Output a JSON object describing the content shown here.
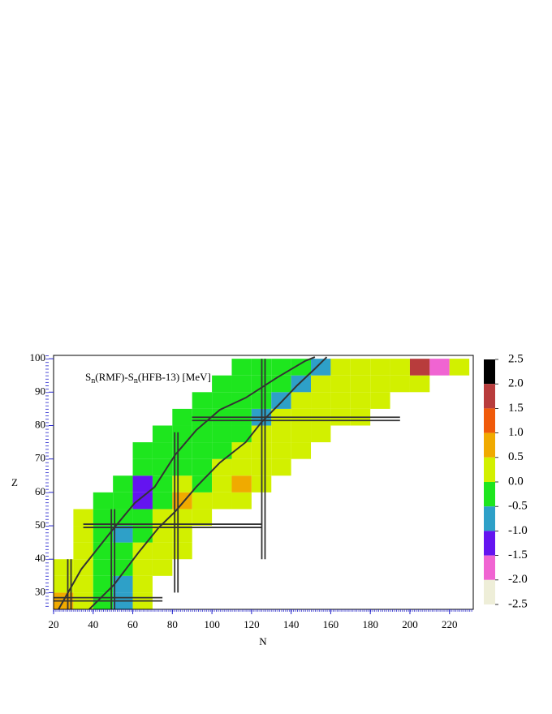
{
  "chart_data": {
    "type": "heatmap",
    "annotation": [
      "S",
      "n",
      "(RMF)-S",
      "n",
      "(HFB-13) [MeV]"
    ],
    "x_label": "N",
    "y_label": "Z",
    "xlim": [
      20,
      232
    ],
    "ylim": [
      25,
      101
    ],
    "xticks": [
      20,
      40,
      60,
      80,
      100,
      120,
      140,
      160,
      180,
      200,
      220
    ],
    "yticks": [
      30,
      40,
      50,
      60,
      70,
      80,
      90,
      100
    ],
    "x_edges": [
      20,
      30,
      40,
      50,
      60,
      70,
      80,
      90,
      100,
      110,
      120,
      130,
      140,
      150,
      160,
      170,
      180,
      190,
      200,
      210,
      220,
      230
    ],
    "y_edges": [
      25,
      30,
      35,
      40,
      45,
      50,
      55,
      60,
      65,
      70,
      75,
      80,
      85,
      90,
      95,
      100
    ],
    "values": [
      [
        0.6,
        0.2,
        -0.3,
        -0.7,
        0.1,
        null,
        null,
        null,
        null,
        null,
        null,
        null,
        null,
        null,
        null,
        null,
        null,
        null,
        null,
        null,
        null
      ],
      [
        0.4,
        0.1,
        -0.2,
        -0.8,
        0.2,
        null,
        null,
        null,
        null,
        null,
        null,
        null,
        null,
        null,
        null,
        null,
        null,
        null,
        null,
        null,
        null
      ],
      [
        0.3,
        0.2,
        -0.1,
        -0.4,
        0.3,
        0.2,
        null,
        null,
        null,
        null,
        null,
        null,
        null,
        null,
        null,
        null,
        null,
        null,
        null,
        null,
        null
      ],
      [
        null,
        0.3,
        -0.2,
        -0.3,
        0.2,
        0.3,
        0.1,
        null,
        null,
        null,
        null,
        null,
        null,
        null,
        null,
        null,
        null,
        null,
        null,
        null,
        null
      ],
      [
        null,
        0.2,
        -0.1,
        -0.6,
        -0.2,
        0.3,
        0.2,
        null,
        null,
        null,
        null,
        null,
        null,
        null,
        null,
        null,
        null,
        null,
        null,
        null,
        null
      ],
      [
        null,
        0.1,
        -0.3,
        -0.2,
        -0.4,
        0.4,
        0.2,
        0.1,
        null,
        null,
        null,
        null,
        null,
        null,
        null,
        null,
        null,
        null,
        null,
        null,
        null
      ],
      [
        null,
        null,
        -0.1,
        -0.3,
        -1.2,
        -0.2,
        0.6,
        0.2,
        0.3,
        0.1,
        null,
        null,
        null,
        null,
        null,
        null,
        null,
        null,
        null,
        null,
        null
      ],
      [
        null,
        null,
        null,
        -0.2,
        -1.1,
        -0.3,
        0.3,
        -0.2,
        0.2,
        0.7,
        0.1,
        null,
        null,
        null,
        null,
        null,
        null,
        null,
        null,
        null,
        null
      ],
      [
        null,
        null,
        null,
        null,
        -0.2,
        -0.3,
        -0.1,
        -0.4,
        0.2,
        0.3,
        0.1,
        0.2,
        null,
        null,
        null,
        null,
        null,
        null,
        null,
        null,
        null
      ],
      [
        null,
        null,
        null,
        null,
        -0.1,
        -0.2,
        -0.3,
        -0.2,
        -0.3,
        0.2,
        0.3,
        0.2,
        0.1,
        null,
        null,
        null,
        null,
        null,
        null,
        null,
        null
      ],
      [
        null,
        null,
        null,
        null,
        null,
        -0.2,
        -0.3,
        -0.1,
        -0.4,
        -0.3,
        0.2,
        0.1,
        0.2,
        0.3,
        null,
        null,
        null,
        null,
        null,
        null,
        null
      ],
      [
        null,
        null,
        null,
        null,
        null,
        null,
        -0.1,
        -0.3,
        -0.2,
        -0.2,
        -0.8,
        0.3,
        0.2,
        0.1,
        0.4,
        0.3,
        null,
        null,
        null,
        null,
        null
      ],
      [
        null,
        null,
        null,
        null,
        null,
        null,
        null,
        -0.2,
        -0.3,
        -0.1,
        -0.2,
        -0.6,
        0.2,
        0.1,
        0.2,
        0.3,
        0.2,
        null,
        null,
        null,
        null
      ],
      [
        null,
        null,
        null,
        null,
        null,
        null,
        null,
        null,
        -0.3,
        -0.2,
        -0.3,
        -0.1,
        -0.7,
        0.2,
        0.1,
        0.3,
        0.2,
        0.1,
        0.3,
        null,
        null
      ],
      [
        null,
        null,
        null,
        null,
        null,
        null,
        null,
        null,
        null,
        -0.1,
        -0.2,
        -0.3,
        -0.4,
        -0.9,
        0.1,
        0.2,
        0.3,
        0.2,
        1.7,
        -1.8,
        0.2
      ]
    ],
    "colorbar": {
      "ticks": [
        2.5,
        {
          "value": 2,
          "label": "2.0"
        },
        1.5,
        {
          "value": 1,
          "label": "1.0"
        },
        0.5,
        {
          "value": 0,
          "label": "0.0"
        },
        -0.5,
        {
          "value": -1,
          "label": "-1.0"
        },
        -1.5,
        {
          "value": -2,
          "label": "-2.0"
        },
        -2.5
      ],
      "colors": [
        "#000000",
        "#b83c3c",
        "#f05a0a",
        "#f0aa00",
        "#d2f000",
        "#1ee61e",
        "#2ea0c8",
        "#6414f0",
        "#f064d2",
        "#eeeed8"
      ]
    },
    "curves": [
      {
        "color": "#333333",
        "x": [
          22.5,
          34,
          50.6,
          61,
          71,
          81.5,
          92,
          104,
          117,
          133,
          147,
          152
        ],
        "y": [
          25,
          37,
          49.4,
          56.8,
          61.6,
          71.3,
          78.6,
          84.7,
          88.3,
          94.4,
          99.3,
          100.5
        ]
      },
      {
        "color": "#333333",
        "x": [
          38,
          50.6,
          63,
          73,
          81.5,
          92,
          104,
          117,
          125,
          135,
          143,
          152,
          158
        ],
        "y": [
          25,
          32.4,
          42.1,
          49.4,
          54.3,
          61.6,
          68.9,
          75,
          81,
          87,
          92,
          97,
          100.5
        ]
      }
    ],
    "magic_n": [
      {
        "n": 28,
        "z": [
          25,
          40
        ]
      },
      {
        "n": 50,
        "z": [
          25,
          55
        ]
      },
      {
        "n": 82,
        "z": [
          30,
          78
        ]
      },
      {
        "n": 126,
        "z": [
          40,
          100
        ]
      }
    ],
    "magic_z": [
      {
        "z": 28,
        "n": [
          20,
          75
        ]
      },
      {
        "z": 50,
        "n": [
          35,
          125
        ]
      },
      {
        "z": 82,
        "n": [
          90,
          195
        ]
      }
    ],
    "magic_color": "#333333"
  }
}
